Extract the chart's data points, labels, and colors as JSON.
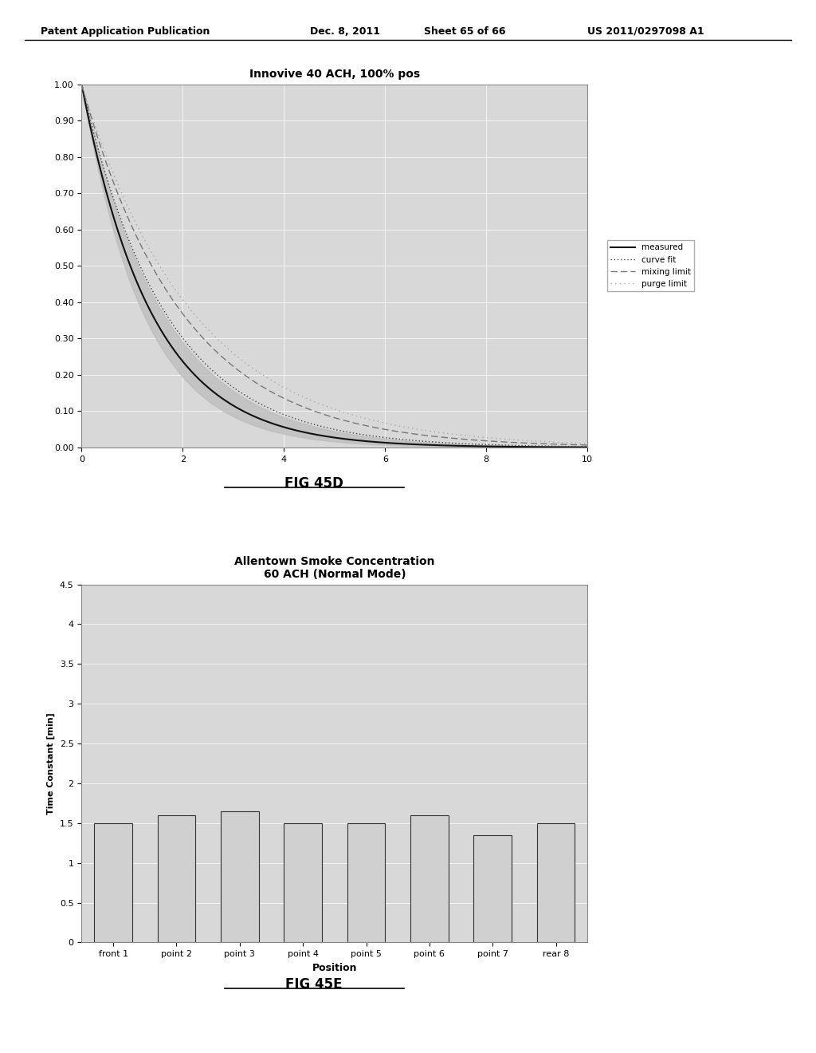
{
  "fig1_title": "Innovive 40 ACH, 100% pos",
  "fig1_xlim": [
    0,
    10
  ],
  "fig1_ylim": [
    0.0,
    1.0
  ],
  "fig1_yticks": [
    0.0,
    0.1,
    0.2,
    0.3,
    0.4,
    0.5,
    0.6,
    0.7,
    0.8,
    0.9,
    1.0
  ],
  "fig1_xticks": [
    0,
    2,
    4,
    6,
    8,
    10
  ],
  "fig1_decay_rate_measured": 0.72,
  "fig1_decay_rate_curve_fit": 0.6,
  "fig1_decay_rate_mixing": 0.5,
  "fig1_decay_rate_purge": 0.45,
  "legend1": [
    "measured",
    "curve fit",
    "mixing limit",
    "purge limit"
  ],
  "fig2_title_line1": "Allentown Smoke Concentration",
  "fig2_title_line2": "60 ACH (Normal Mode)",
  "fig2_categories": [
    "front 1",
    "point 2",
    "point 3",
    "point 4",
    "point 5",
    "point 6",
    "point 7",
    "rear 8"
  ],
  "fig2_values": [
    1.5,
    1.6,
    1.65,
    1.5,
    1.5,
    1.6,
    1.35,
    1.5
  ],
  "fig2_ylabel": "Time Constant [min]",
  "fig2_xlabel": "Position",
  "fig2_ylim": [
    0,
    4.5
  ],
  "fig2_yticks": [
    0,
    0.5,
    1,
    1.5,
    2,
    2.5,
    3,
    3.5,
    4,
    4.5
  ],
  "bar_color": "#d0d0d0",
  "bar_edgecolor": "#333333",
  "bg_color": "#d8d8d8",
  "fig_label1": "FIG 45D",
  "fig_label2": "FIG 45E"
}
